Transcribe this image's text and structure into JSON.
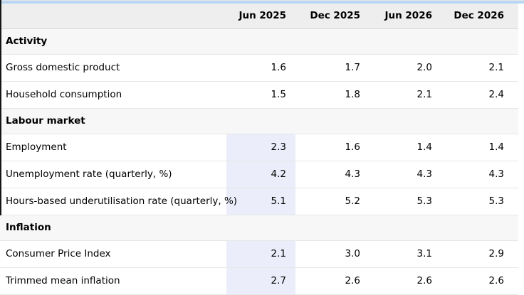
{
  "chart_data": {
    "type": "table",
    "columns": [
      "Jun 2025",
      "Dec 2025",
      "Jun 2026",
      "Dec 2026"
    ],
    "highlighted_column": "Jun 2025",
    "sections": [
      {
        "label": "Activity",
        "rows": [
          {
            "label": "Gross domestic product",
            "values": [
              "1.6",
              "1.7",
              "2.0",
              "2.1"
            ],
            "highlight_first_value": false
          },
          {
            "label": "Household consumption",
            "values": [
              "1.5",
              "1.8",
              "2.1",
              "2.4"
            ],
            "highlight_first_value": false
          }
        ]
      },
      {
        "label": "Labour market",
        "rows": [
          {
            "label": "Employment",
            "values": [
              "2.3",
              "1.6",
              "1.4",
              "1.4"
            ],
            "highlight_first_value": true
          },
          {
            "label": "Unemployment rate (quarterly, %)",
            "values": [
              "4.2",
              "4.3",
              "4.3",
              "4.3"
            ],
            "highlight_first_value": true
          },
          {
            "label": "Hours-based underutilisation rate (quarterly, %)",
            "values": [
              "5.1",
              "5.2",
              "5.3",
              "5.3"
            ],
            "highlight_first_value": true
          }
        ]
      },
      {
        "label": "Inflation",
        "rows": [
          {
            "label": "Consumer Price Index",
            "values": [
              "2.1",
              "3.0",
              "3.1",
              "2.9"
            ],
            "highlight_first_value": true
          },
          {
            "label": "Trimmed mean inflation",
            "values": [
              "2.7",
              "2.6",
              "2.6",
              "2.6"
            ],
            "highlight_first_value": true
          }
        ]
      }
    ]
  },
  "colors": {
    "highlight_cell": "#ebeefa",
    "header_bg": "#eeeeee",
    "section_bg": "#f7f7f7",
    "top_strip": "#b9d7f3",
    "row_border": "#e7e7e7",
    "header_border": "#d8d8d8",
    "text": "#000000"
  }
}
